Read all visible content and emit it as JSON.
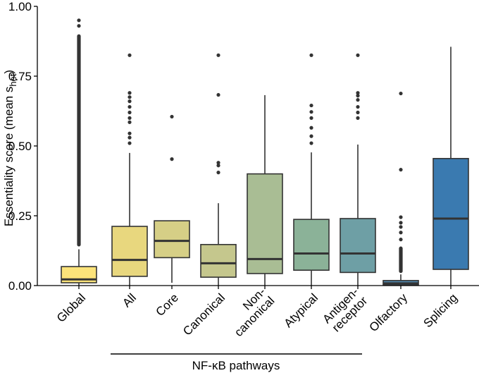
{
  "chart_data": {
    "type": "boxplot",
    "ylabel": "Essentiality score (mean s",
    "ylabel_sub": "het",
    "ylabel_close": ")",
    "ylim": [
      0,
      1
    ],
    "yticks": [
      {
        "value": 0.0,
        "label": "0.00"
      },
      {
        "value": 0.25,
        "label": "0.25"
      },
      {
        "value": 0.5,
        "label": "0.50"
      },
      {
        "value": 0.75,
        "label": "0.75"
      },
      {
        "value": 1.0,
        "label": "1.00"
      }
    ],
    "group_label": "NF-κB pathways",
    "group_span": [
      "All",
      "Antigen-receptor"
    ],
    "boxes": [
      {
        "name": "Global",
        "label_lines": [
          "Global"
        ],
        "color": "#FCE37A",
        "whisker_low": 0.0,
        "q1": 0.01,
        "median": 0.022,
        "q3": 0.068,
        "whisker_high": 0.13,
        "outliers_dense": [
          0.14,
          0.9
        ],
        "outliers": [
          0.93,
          0.95
        ]
      },
      {
        "name": "All",
        "label_lines": [
          "All"
        ],
        "color": "#E8D77E",
        "whisker_low": 0.0,
        "q1": 0.033,
        "median": 0.092,
        "q3": 0.212,
        "whisker_high": 0.475,
        "outliers": [
          0.51,
          0.53,
          0.545,
          0.585,
          0.6,
          0.62,
          0.64,
          0.66,
          0.675,
          0.69,
          0.825
        ]
      },
      {
        "name": "Core",
        "label_lines": [
          "Core"
        ],
        "color": "#D6CF86",
        "whisker_low": 0.01,
        "q1": 0.1,
        "median": 0.16,
        "q3": 0.232,
        "whisker_high": 0.232,
        "outliers": [
          0.453,
          0.605
        ]
      },
      {
        "name": "Canonical",
        "label_lines": [
          "Canonical"
        ],
        "color": "#C5C78D",
        "whisker_low": 0.0,
        "q1": 0.03,
        "median": 0.08,
        "q3": 0.147,
        "whisker_high": 0.295,
        "outliers": [
          0.405,
          0.43,
          0.44,
          0.683,
          0.825
        ]
      },
      {
        "name": "Non-canonical",
        "label_lines": [
          "Non-",
          "canonical"
        ],
        "color": "#A9BD94",
        "whisker_low": 0.0,
        "q1": 0.043,
        "median": 0.095,
        "q3": 0.4,
        "whisker_high": 0.682,
        "outliers": []
      },
      {
        "name": "Atypical",
        "label_lines": [
          "Atypical"
        ],
        "color": "#8BB298",
        "whisker_low": 0.0,
        "q1": 0.055,
        "median": 0.115,
        "q3": 0.237,
        "whisker_high": 0.477,
        "outliers": [
          0.51,
          0.535,
          0.565,
          0.6,
          0.622,
          0.645,
          0.825
        ]
      },
      {
        "name": "Antigen-receptor",
        "label_lines": [
          "Antigen-",
          "receptor"
        ],
        "color": "#6E9FA5",
        "whisker_low": 0.0,
        "q1": 0.047,
        "median": 0.115,
        "q3": 0.24,
        "whisker_high": 0.505,
        "outliers": [
          0.6,
          0.62,
          0.64,
          0.665,
          0.68,
          0.69,
          0.825
        ]
      },
      {
        "name": "Olfactory",
        "label_lines": [
          "Olfactory"
        ],
        "color": "#4F86AC",
        "whisker_low": 0.0,
        "q1": 0.002,
        "median": 0.008,
        "q3": 0.018,
        "whisker_high": 0.04,
        "outliers_dense": [
          0.045,
          0.14
        ],
        "outliers": [
          0.165,
          0.19,
          0.21,
          0.225,
          0.245,
          0.415,
          0.688
        ]
      },
      {
        "name": "Splicing",
        "label_lines": [
          "Splicing"
        ],
        "color": "#3A7AB0",
        "whisker_low": 0.0,
        "q1": 0.058,
        "median": 0.24,
        "q3": 0.455,
        "whisker_high": 0.855,
        "outliers": []
      }
    ]
  }
}
